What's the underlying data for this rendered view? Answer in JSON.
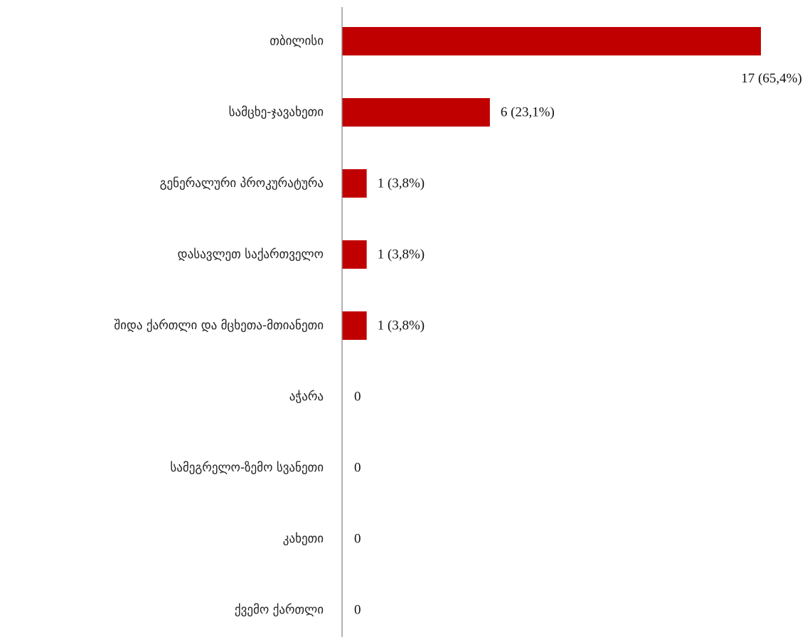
{
  "chart_data": {
    "type": "bar",
    "orientation": "horizontal",
    "categories": [
      "თბილისი",
      "სამცხე-ჯავახეთი",
      "გენერალური პროკურატურა",
      "დასავლეთ საქართველო",
      "შიდა ქართლი და მცხეთა-მთიანეთი",
      "აჭარა",
      "სამეგრელო-ზემო სვანეთი",
      "კახეთი",
      "ქვემო ქართლი"
    ],
    "values": [
      17,
      6,
      1,
      1,
      1,
      0,
      0,
      0,
      0
    ],
    "value_labels": [
      "17 (65,4%)",
      "6 (23,1%)",
      "1 (3,8%)",
      "1 (3,8%)",
      "1 (3,8%)",
      "0",
      "0",
      "0",
      "0"
    ],
    "color": "#c00000",
    "xlim": [
      0,
      17
    ]
  }
}
